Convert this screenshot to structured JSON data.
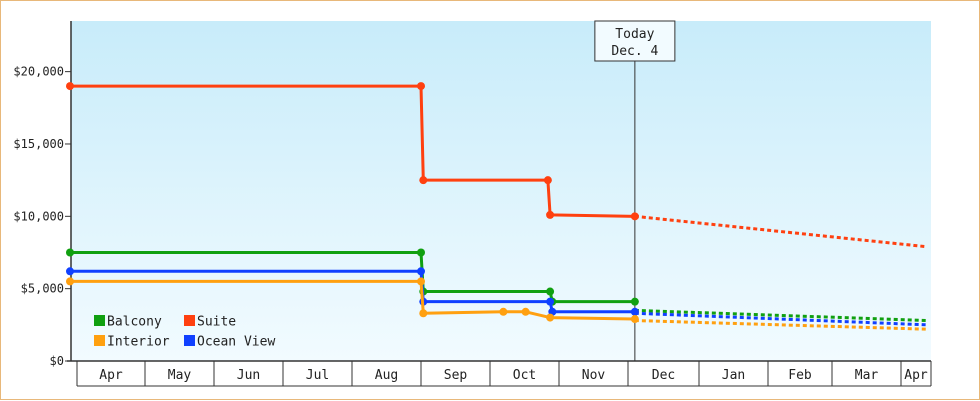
{
  "chart_data": {
    "type": "line",
    "xlabel": "",
    "ylabel": "",
    "ylim": [
      0,
      23500
    ],
    "y_ticks": [
      {
        "value": 0,
        "label": "$0"
      },
      {
        "value": 5000,
        "label": "$5,000"
      },
      {
        "value": 10000,
        "label": "$10,000"
      },
      {
        "value": 15000,
        "label": "$15,000"
      },
      {
        "value": 20000,
        "label": "$20,000"
      }
    ],
    "months": [
      "Apr",
      "May",
      "Jun",
      "Jul",
      "Aug",
      "Sep",
      "Oct",
      "Nov",
      "Dec",
      "Jan",
      "Feb",
      "Mar",
      "Apr"
    ],
    "today": {
      "line1": "Today",
      "line2": "Dec. 4",
      "date": "2023-12-04"
    },
    "grid": false,
    "legend_placement": "bottom-left",
    "series": [
      {
        "name": "Suite",
        "color": "#ff4010",
        "points": [
          [
            "2023-04-01",
            19000
          ],
          [
            "2023-09-01",
            19000
          ],
          [
            "2023-09-02",
            12500
          ],
          [
            "2023-10-27",
            12500
          ],
          [
            "2023-10-28",
            10100
          ],
          [
            "2023-12-04",
            10000
          ]
        ],
        "forecast": [
          [
            "2023-12-04",
            10000
          ],
          [
            "2024-04-12",
            7900
          ]
        ]
      },
      {
        "name": "Balcony",
        "color": "#10a010",
        "points": [
          [
            "2023-04-01",
            7500
          ],
          [
            "2023-09-01",
            7500
          ],
          [
            "2023-09-02",
            4800
          ],
          [
            "2023-10-28",
            4800
          ],
          [
            "2023-10-29",
            4100
          ],
          [
            "2023-12-04",
            4100
          ]
        ],
        "forecast": [
          [
            "2023-12-04",
            3500
          ],
          [
            "2024-04-12",
            2800
          ]
        ]
      },
      {
        "name": "Ocean View",
        "color": "#1040ff",
        "points": [
          [
            "2023-04-01",
            6200
          ],
          [
            "2023-09-01",
            6200
          ],
          [
            "2023-09-02",
            4100
          ],
          [
            "2023-10-28",
            4100
          ],
          [
            "2023-10-29",
            3400
          ],
          [
            "2023-12-04",
            3400
          ]
        ],
        "forecast": [
          [
            "2023-12-04",
            3300
          ],
          [
            "2024-04-12",
            2500
          ]
        ]
      },
      {
        "name": "Interior",
        "color": "#ffa010",
        "points": [
          [
            "2023-04-01",
            5500
          ],
          [
            "2023-09-01",
            5500
          ],
          [
            "2023-09-02",
            3300
          ],
          [
            "2023-10-07",
            3400
          ],
          [
            "2023-10-17",
            3400
          ],
          [
            "2023-10-28",
            3000
          ],
          [
            "2023-12-04",
            2900
          ]
        ],
        "forecast": [
          [
            "2023-12-04",
            2800
          ],
          [
            "2024-04-12",
            2200
          ]
        ]
      }
    ]
  }
}
